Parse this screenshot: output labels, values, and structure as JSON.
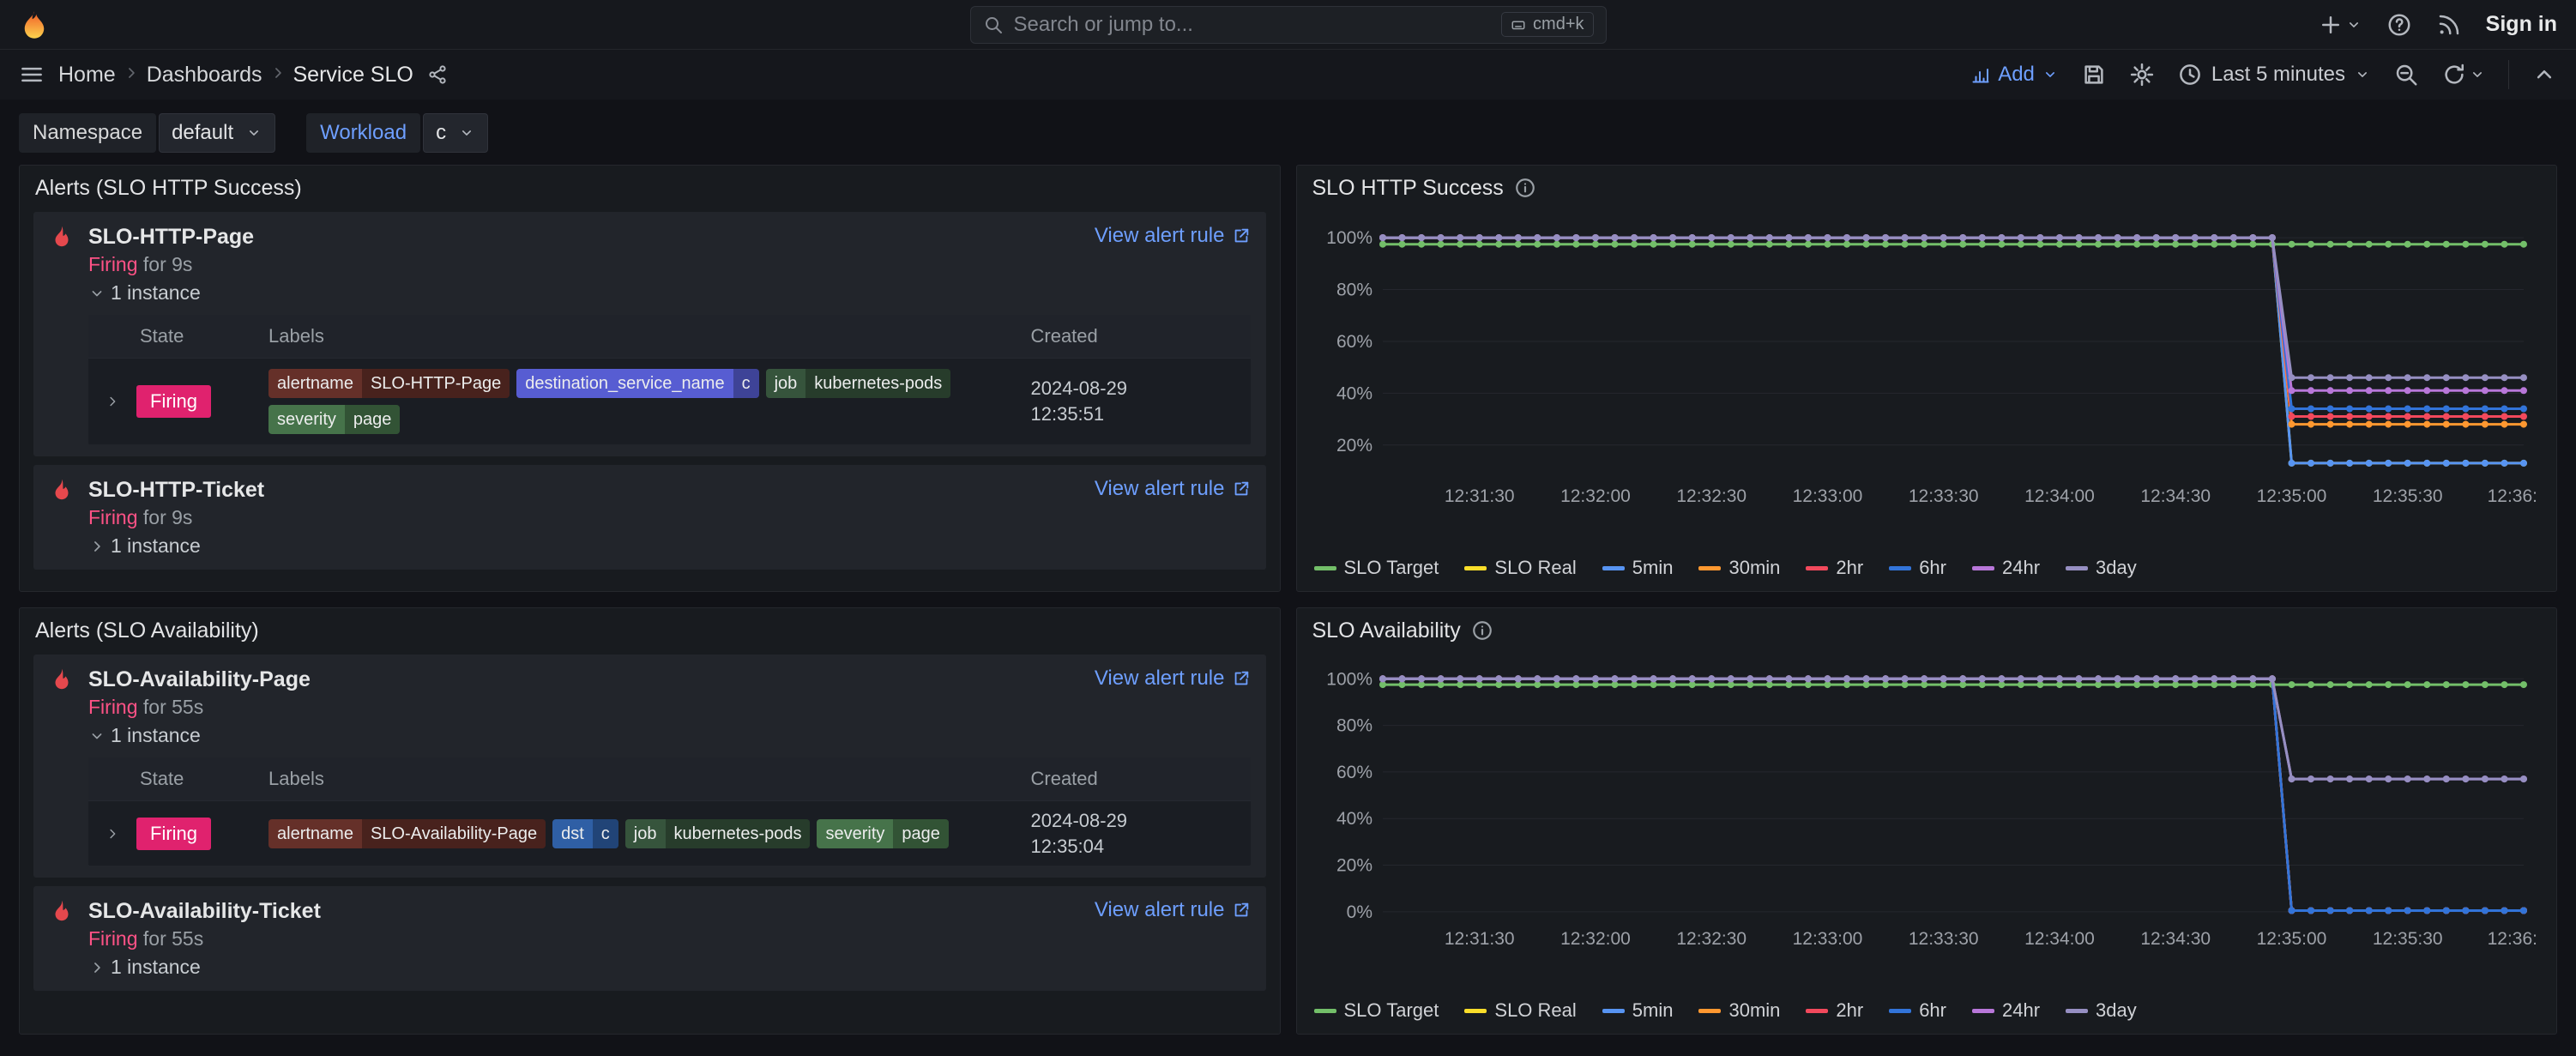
{
  "topnav": {
    "search_placeholder": "Search or jump to...",
    "shortcut": "cmd+k",
    "sign_in": "Sign in"
  },
  "breadcrumb": {
    "home": "Home",
    "dashboards": "Dashboards",
    "current": "Service SLO"
  },
  "toolbar": {
    "add": "Add",
    "time_range": "Last 5 minutes"
  },
  "filters": {
    "namespace_label": "Namespace",
    "namespace_value": "default",
    "workload_label": "Workload",
    "workload_value": "c"
  },
  "alerts_http": {
    "title": "Alerts (SLO HTTP Success)",
    "view_rule": "View alert rule",
    "headers": {
      "state": "State",
      "labels": "Labels",
      "created": "Created"
    },
    "page": {
      "name": "SLO-HTTP-Page",
      "state": "Firing",
      "duration": "for 9s",
      "instances": "1 instance",
      "row": {
        "state": "Firing",
        "labels": [
          {
            "key": "alertname",
            "value": "SLO-HTTP-Page",
            "color": "#653029"
          },
          {
            "key": "destination_service_name",
            "value": "c",
            "color": "#575dd2"
          },
          {
            "key": "job",
            "value": "kubernetes-pods",
            "color": "#36543c"
          },
          {
            "key": "severity",
            "value": "page",
            "color": "#46734a"
          }
        ],
        "created_date": "2024-08-29",
        "created_time": "12:35:51"
      }
    },
    "ticket": {
      "name": "SLO-HTTP-Ticket",
      "state": "Firing",
      "duration": "for 9s",
      "instances": "1 instance"
    }
  },
  "alerts_availability": {
    "title": "Alerts (SLO Availability)",
    "view_rule": "View alert rule",
    "headers": {
      "state": "State",
      "labels": "Labels",
      "created": "Created"
    },
    "page": {
      "name": "SLO-Availability-Page",
      "state": "Firing",
      "duration": "for 55s",
      "instances": "1 instance",
      "row": {
        "state": "Firing",
        "labels": [
          {
            "key": "alertname",
            "value": "SLO-Availability-Page",
            "color": "#653029"
          },
          {
            "key": "dst",
            "value": "c",
            "color": "#2f5fa5"
          },
          {
            "key": "job",
            "value": "kubernetes-pods",
            "color": "#36543c"
          },
          {
            "key": "severity",
            "value": "page",
            "color": "#46734a"
          }
        ],
        "created_date": "2024-08-29",
        "created_time": "12:35:04"
      }
    },
    "ticket": {
      "name": "SLO-Availability-Ticket",
      "state": "Firing",
      "duration": "for 55s",
      "instances": "1 instance"
    }
  },
  "chart_data": [
    {
      "type": "line",
      "title": "SLO HTTP Success",
      "x_time_origin": "12:31:00",
      "x_domain_s": [
        5,
        300
      ],
      "xticks_s": [
        30,
        60,
        90,
        120,
        150,
        180,
        210,
        240,
        270,
        300
      ],
      "xtick_labels": [
        "12:31:30",
        "12:32:00",
        "12:32:30",
        "12:33:00",
        "12:33:30",
        "12:34:00",
        "12:34:30",
        "12:35:00",
        "12:35:30",
        "12:36:"
      ],
      "ylim": [
        8,
        106
      ],
      "yticks": [
        20,
        40,
        60,
        80,
        100
      ],
      "ytick_suffix": "%",
      "grid": true,
      "legend_position": "bottom",
      "sample_step_s": 5,
      "drop_at_s": 240,
      "series": [
        {
          "name": "SLO Target",
          "color": "#73bf69",
          "before": 97.5,
          "after": 97.5
        },
        {
          "name": "SLO Real",
          "color": "#fade2a",
          "before": 100,
          "after": 13
        },
        {
          "name": "5min",
          "color": "#5794f2",
          "before": 100,
          "after": 13
        },
        {
          "name": "30min",
          "color": "#ff9830",
          "before": 100,
          "after": 28
        },
        {
          "name": "2hr",
          "color": "#f2495c",
          "before": 100,
          "after": 31
        },
        {
          "name": "6hr",
          "color": "#3274d9",
          "before": 100,
          "after": 34
        },
        {
          "name": "24hr",
          "color": "#b877d9",
          "before": 100,
          "after": 41
        },
        {
          "name": "3day",
          "color": "#968fc2",
          "before": 100,
          "after": 46
        }
      ]
    },
    {
      "type": "line",
      "title": "SLO Availability",
      "x_time_origin": "12:31:00",
      "x_domain_s": [
        5,
        300
      ],
      "xticks_s": [
        30,
        60,
        90,
        120,
        150,
        180,
        210,
        240,
        270,
        300
      ],
      "xtick_labels": [
        "12:31:30",
        "12:32:00",
        "12:32:30",
        "12:33:00",
        "12:33:30",
        "12:34:00",
        "12:34:30",
        "12:35:00",
        "12:35:30",
        "12:36:"
      ],
      "ylim": [
        -3,
        106
      ],
      "yticks": [
        0,
        20,
        40,
        60,
        80,
        100
      ],
      "ytick_suffix": "%",
      "grid": true,
      "legend_position": "bottom",
      "sample_step_s": 5,
      "drop_at_s": 240,
      "series": [
        {
          "name": "SLO Target",
          "color": "#73bf69",
          "before": 97.5,
          "after": 97.5
        },
        {
          "name": "SLO Real",
          "color": "#fade2a",
          "before": 100,
          "after": 0.5
        },
        {
          "name": "5min",
          "color": "#5794f2",
          "before": 100,
          "after": 0.5
        },
        {
          "name": "30min",
          "color": "#ff9830",
          "before": 100,
          "after": 0.5
        },
        {
          "name": "2hr",
          "color": "#f2495c",
          "before": 100,
          "after": 0.5
        },
        {
          "name": "6hr",
          "color": "#3274d9",
          "before": 100,
          "after": 0.5
        },
        {
          "name": "24hr",
          "color": "#b877d9",
          "before": 100,
          "after": 57
        },
        {
          "name": "3day",
          "color": "#968fc2",
          "before": 100,
          "after": 57
        }
      ]
    }
  ]
}
